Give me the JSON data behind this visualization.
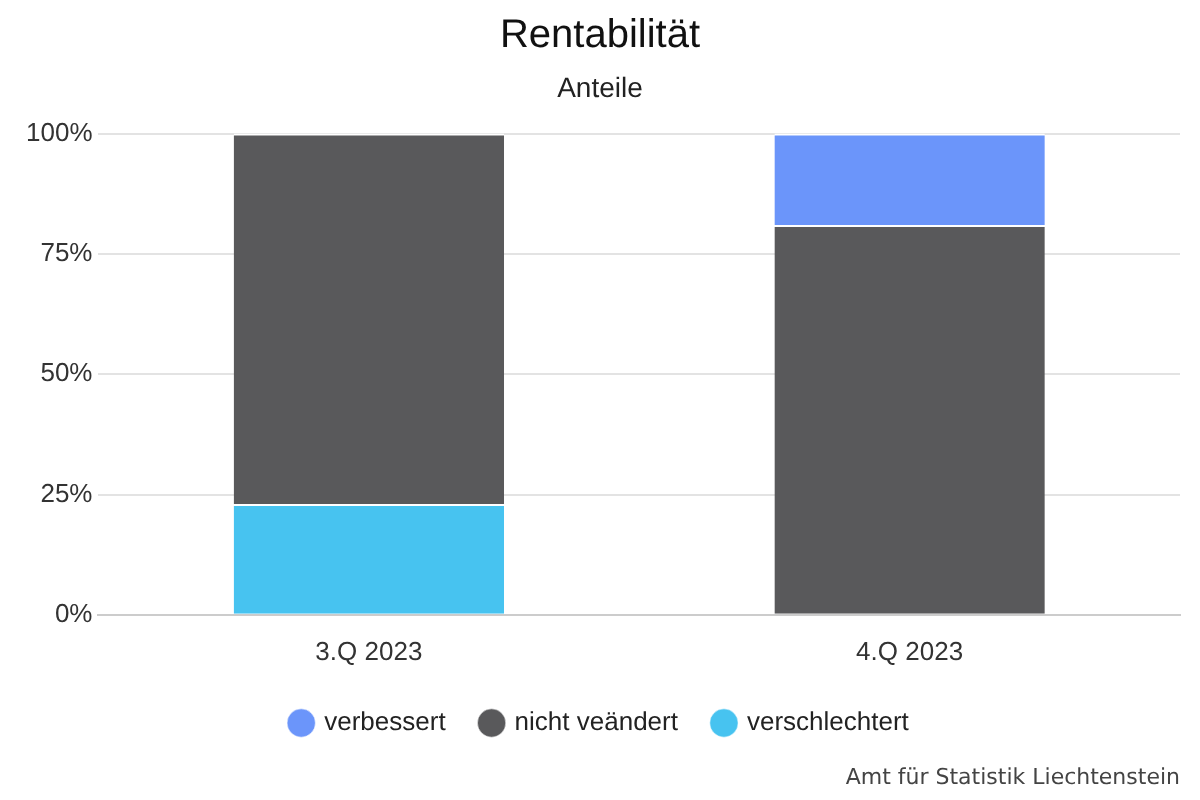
{
  "chart_data": {
    "type": "bar",
    "title": "Rentabilität",
    "subtitle": "Anteile",
    "categories": [
      "3.Q 2023",
      "4.Q 2023"
    ],
    "stacked": true,
    "series": [
      {
        "name": "verschlechtert",
        "color": "#47c3f0",
        "values": [
          23,
          0
        ]
      },
      {
        "name": "nicht veändert",
        "color": "#59595b",
        "values": [
          77,
          81
        ]
      },
      {
        "name": "verbessert",
        "color": "#6b95fa",
        "values": [
          0,
          19
        ]
      }
    ],
    "ylim": [
      0,
      100
    ],
    "yticks": [
      {
        "value": 0,
        "label": "0%"
      },
      {
        "value": 25,
        "label": "25%"
      },
      {
        "value": 50,
        "label": "50%"
      },
      {
        "value": 75,
        "label": "75%"
      },
      {
        "value": 100,
        "label": "100%"
      }
    ],
    "grid": "y",
    "legend": "bottom",
    "annotations": [
      "Amt für Statistik Liechtenstein"
    ]
  }
}
